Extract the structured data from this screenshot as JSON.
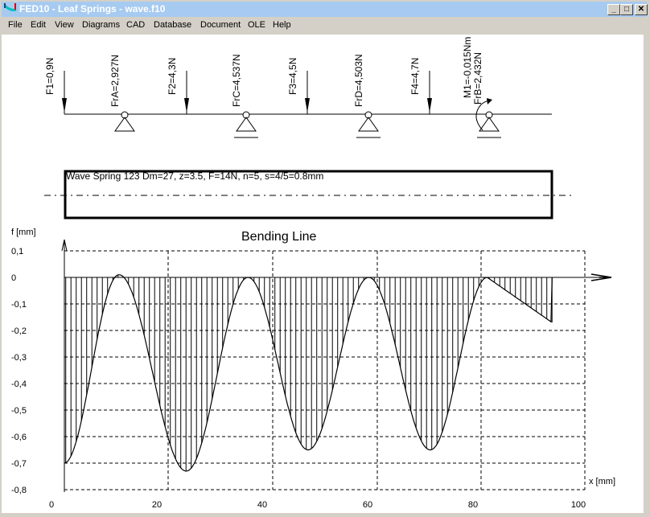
{
  "window": {
    "title": "FED10 - Leaf Springs  -  wave.f10",
    "buttons": {
      "minimize": "_",
      "maximize": "□",
      "close": "✕"
    }
  },
  "menu": [
    "File",
    "Edit",
    "View",
    "Diagrams",
    "CAD",
    "Database",
    "Document",
    "OLE",
    "Help"
  ],
  "forces": {
    "loads": [
      "F1=0,9N",
      "F2=4,3N",
      "F3=4,5N",
      "F4=4,7N"
    ],
    "supports": [
      "FrA=2,927N",
      "FrC=4,537N",
      "FrD=4,503N",
      "FrB=2,432N"
    ],
    "moment": "M1=-0,015Nm"
  },
  "spring_label": "Wave Spring 123  Dm=27, z=3.5, F=14N, n=5, s=4/5=0.8mm",
  "chart_data": {
    "type": "line",
    "title": "Bending Line",
    "ylabel": "f [mm]",
    "xlabel": "x [mm]",
    "xlim": [
      0,
      100
    ],
    "ylim": [
      -0.8,
      0.1
    ],
    "xticks": [
      "0",
      "20",
      "40",
      "60",
      "80",
      "100"
    ],
    "yticks": [
      "0,1",
      "0",
      "-0,1",
      "-0,2",
      "-0,3",
      "-0,4",
      "-0,5",
      "-0,6",
      "-0,7",
      "-0,8"
    ],
    "grid": true,
    "hatched": true,
    "x": [
      2.4,
      12.8,
      25.6,
      37.3,
      48.7,
      60.2,
      71.9,
      82.7,
      95.0
    ],
    "y": [
      -0.7,
      0.01,
      -0.73,
      0.0,
      -0.65,
      0.0,
      -0.65,
      0.0,
      -0.17
    ]
  }
}
